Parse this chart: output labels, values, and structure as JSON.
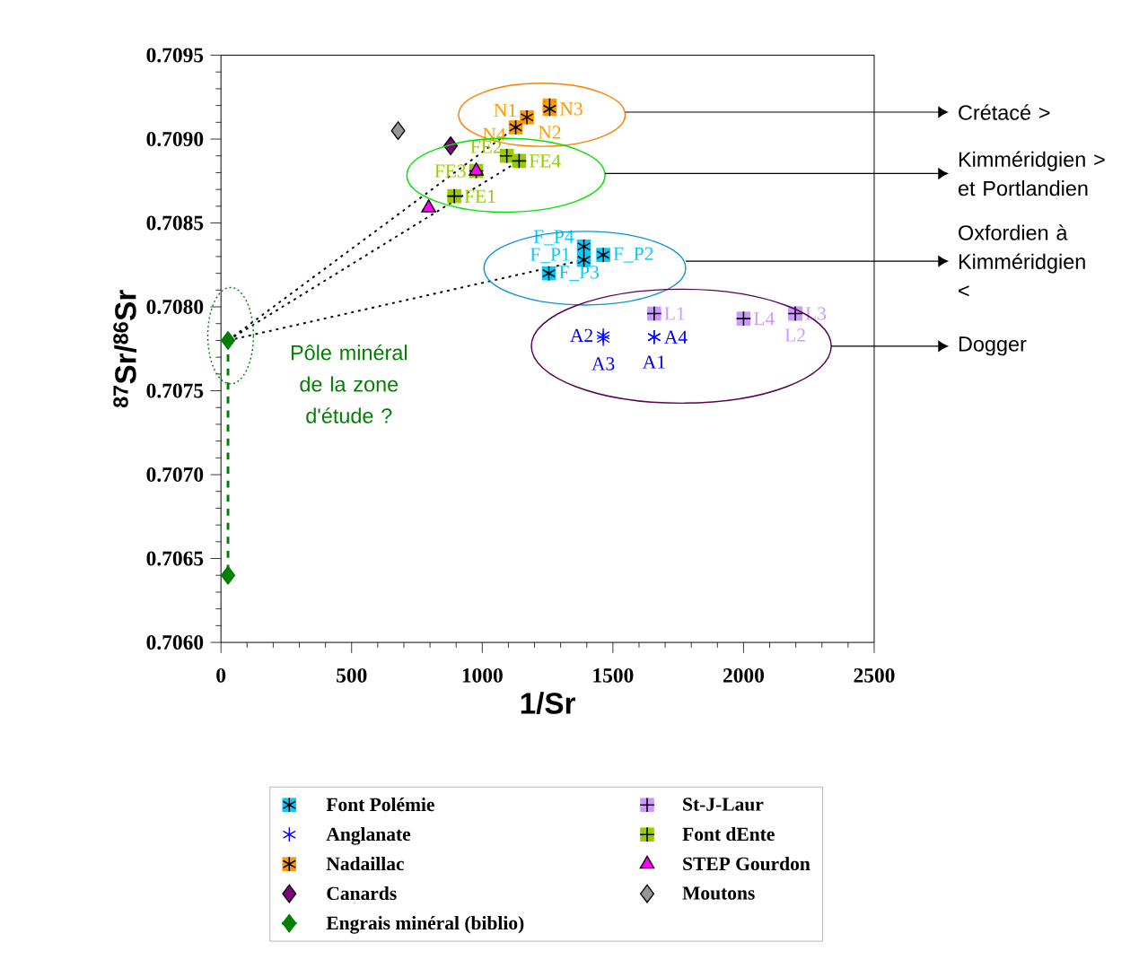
{
  "chart_data": {
    "type": "scatter",
    "xlabel": "1/Sr",
    "ylabel": "$^{87}$Sr/$^{86}$Sr",
    "xlim": [
      0,
      2500
    ],
    "ylim": [
      0.706,
      0.7095
    ],
    "xticks": [
      0,
      500,
      1000,
      1500,
      2000,
      2500
    ],
    "yticks": [
      {
        "value": 0.706,
        "label": "0.7060"
      },
      0.7065,
      {
        "value": 0.707,
        "label": "0.7070"
      },
      0.7075,
      {
        "value": 0.708,
        "label": "0.7080"
      },
      0.7085,
      {
        "value": 0.709,
        "label": "0.7090"
      },
      0.7095
    ],
    "legend": "bottom",
    "series": [
      {
        "name": "Font Polémie",
        "color": "#00ccff",
        "marker": "square",
        "x": [
          1389,
          1389,
          1463,
          1255
        ],
        "values": [
          0.70836,
          0.70828,
          0.70831,
          0.7082
        ],
        "value_labels": [
          "F_P4",
          "F_P1",
          "F_P2",
          "F_P3"
        ]
      },
      {
        "name": "St-J-Laur",
        "color": "#cc99ff",
        "marker": "square",
        "x": [
          1658,
          2198,
          2198,
          2000
        ],
        "values": [
          0.70796,
          0.70796,
          0.70796,
          0.70793
        ],
        "value_labels": [
          "L1",
          "L2",
          "L3",
          "L4"
        ]
      },
      {
        "name": "Anglanate",
        "color": "#0000ff",
        "marker": "cross",
        "x": [
          1658,
          1463,
          1463,
          1658
        ],
        "values": [
          0.70782,
          0.70783,
          0.70781,
          0.70782
        ],
        "value_labels": [
          "A1",
          "A2",
          "A3",
          "A4"
        ]
      },
      {
        "name": "Font dEnte",
        "color": "#99cc00",
        "marker": "square",
        "x": [
          893,
          1094,
          977,
          1141
        ],
        "values": [
          0.70866,
          0.7089,
          0.70881,
          0.70887
        ],
        "value_labels": [
          "FE1",
          "FE2",
          "FE3",
          "FE4"
        ]
      },
      {
        "name": "Nadaillac",
        "color": "#ff9900",
        "marker": "square",
        "x": [
          1171,
          1258,
          1258,
          1128
        ],
        "values": [
          0.70913,
          0.7092,
          0.70918,
          0.70907
        ],
        "value_labels": [
          "N1",
          "N2",
          "N3",
          "N4"
        ]
      },
      {
        "name": "STEP Gourdon",
        "color": "#ff00ff",
        "marker": "triangle",
        "x": [
          977,
          795
        ],
        "values": [
          0.70881,
          0.70859
        ]
      },
      {
        "name": "Canards",
        "color": "#800080",
        "marker": "diamond",
        "x": [
          879
        ],
        "values": [
          0.70896
        ]
      },
      {
        "name": "Moutons",
        "color": "#969696",
        "marker": "diamond",
        "x": [
          678
        ],
        "values": [
          0.70905
        ]
      },
      {
        "name": "Engrais minéral (biblio)",
        "type": "line",
        "color": "#008000",
        "marker": "diamond",
        "line_style": "dashed",
        "x": [
          27,
          27
        ],
        "values": [
          0.7078,
          0.7064
        ]
      },
      {
        "type": "line",
        "color": "#000000",
        "line_style": "dotted",
        "x": [
          27,
          1128
        ],
        "values": [
          0.7078,
          0.70907
        ]
      },
      {
        "type": "line",
        "color": "#000000",
        "line_style": "dotted",
        "x": [
          27,
          1141
        ],
        "values": [
          0.7078,
          0.70887
        ]
      },
      {
        "type": "line",
        "color": "#000000",
        "line_style": "dotted",
        "x": [
          27,
          1389
        ],
        "values": [
          0.7078,
          0.70828
        ]
      }
    ],
    "annotations": [
      "Crétacé >",
      "Kimméridgien > et Portlandien",
      "Oxfordien à Kimméridgien <",
      "Dogger",
      "Pôle minéral de la zone d'étude ?"
    ]
  }
}
